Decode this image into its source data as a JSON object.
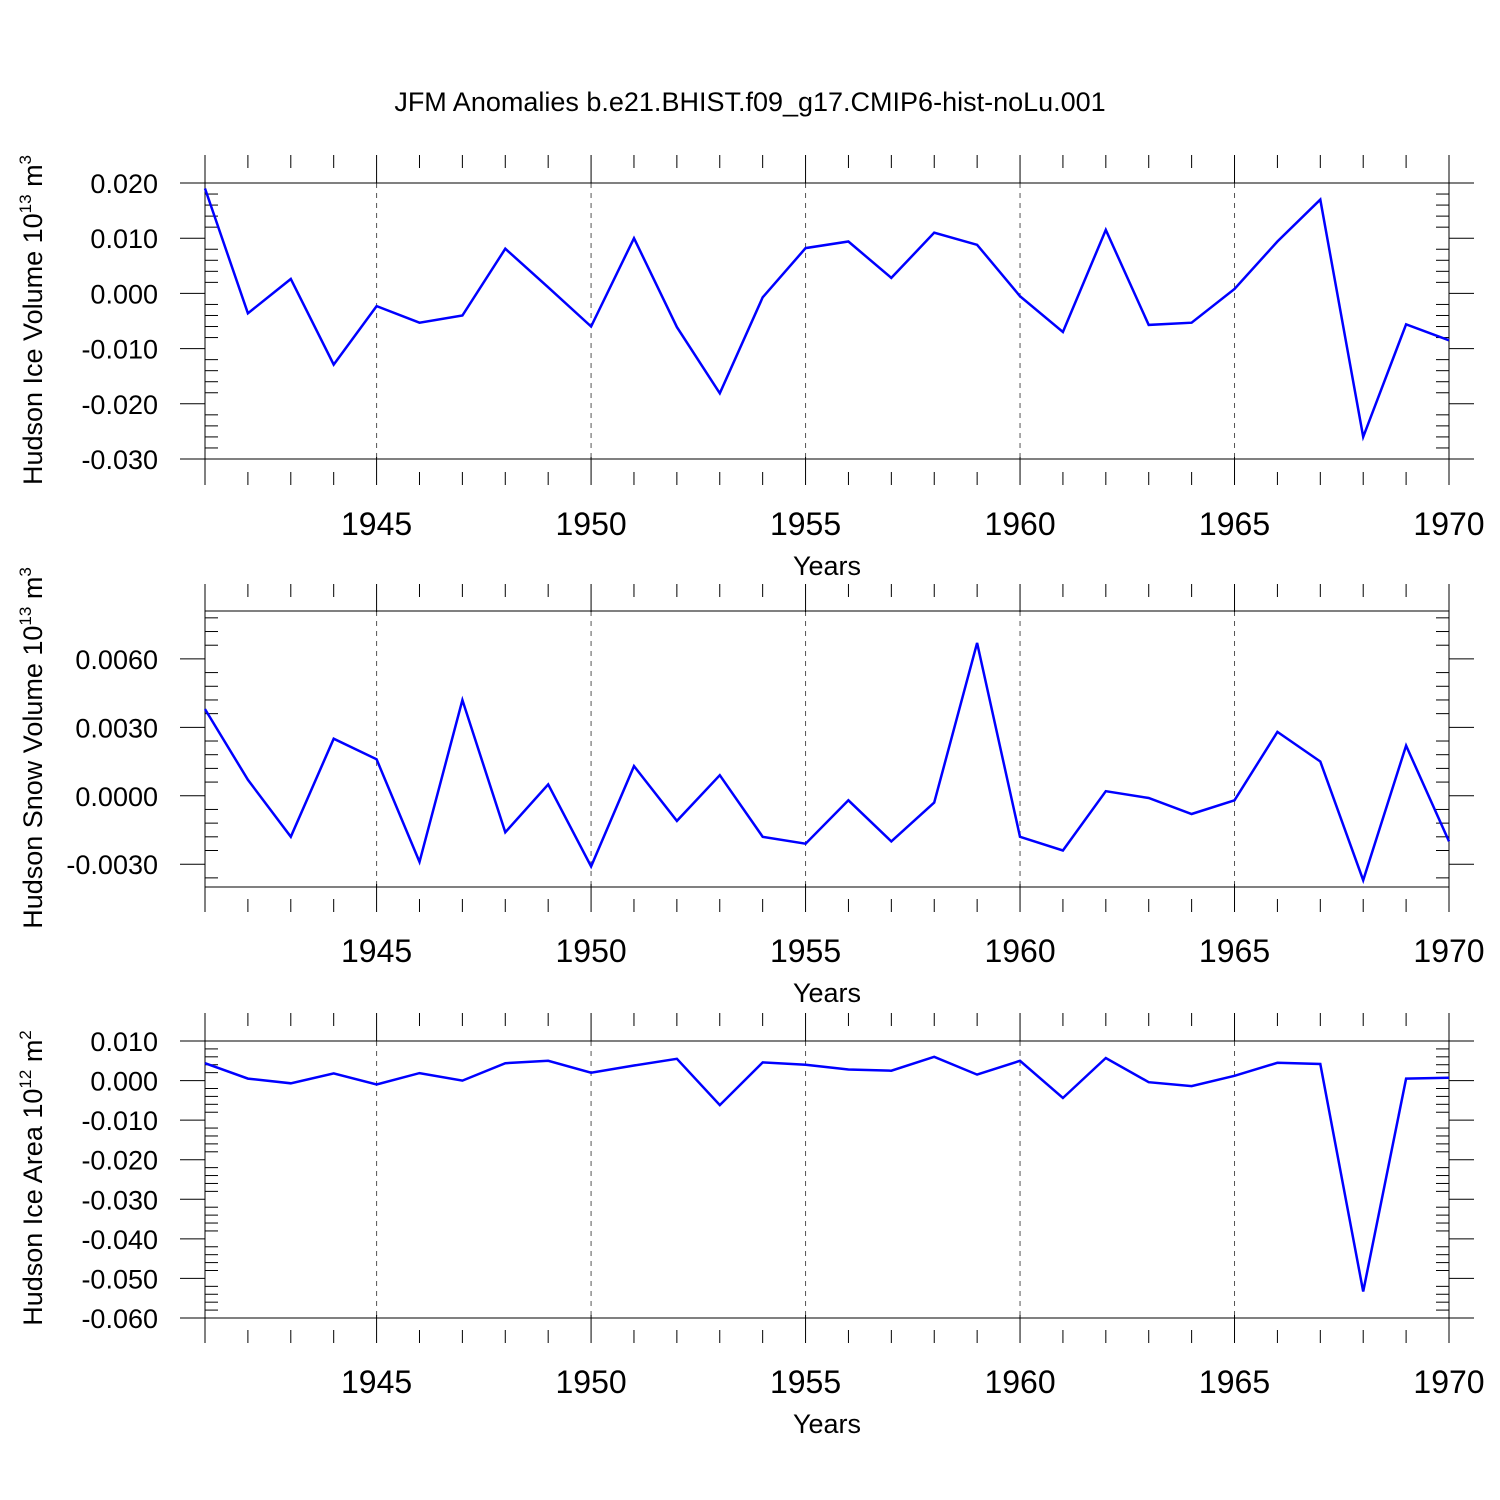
{
  "figure": {
    "title": "JFM Anomalies b.e21.BHIST.f09_g17.CMIP6-hist-noLu.001"
  },
  "chart_data": [
    {
      "type": "line",
      "xlabel": "Years",
      "ylabel": "Hudson Ice Volume 10",
      "ylabel_exp": "13",
      "ylabel_unit": " m",
      "ylabel_unit_exp": "3",
      "xlim": [
        1941,
        1970
      ],
      "ylim": [
        -0.03,
        0.02
      ],
      "xticks": [
        1945,
        1950,
        1955,
        1960,
        1965,
        1970
      ],
      "xtick_labels": [
        "1945",
        "1950",
        "1955",
        "1960",
        "1965",
        "1970"
      ],
      "yticks": [
        0.02,
        0.01,
        0.0,
        -0.01,
        -0.02,
        -0.03
      ],
      "ytick_labels": [
        "0.020",
        "0.010",
        "0.000",
        "-0.010",
        "-0.020",
        "-0.030"
      ],
      "grid": "dashed vertical at labelled x ticks",
      "line_color": "#0000ff",
      "x": [
        1941,
        1942,
        1943,
        1944,
        1945,
        1946,
        1947,
        1948,
        1949,
        1950,
        1951,
        1952,
        1953,
        1954,
        1955,
        1956,
        1957,
        1958,
        1959,
        1960,
        1961,
        1962,
        1963,
        1964,
        1965,
        1966,
        1967,
        1968,
        1969,
        1970
      ],
      "values": [
        0.019,
        -0.0036,
        0.0026,
        -0.0129,
        -0.0023,
        -0.0053,
        -0.004,
        0.0081,
        0.0011,
        -0.006,
        0.01,
        -0.0061,
        -0.0181,
        -0.0007,
        0.0082,
        0.0094,
        0.0028,
        0.011,
        0.0088,
        -0.0005,
        -0.007,
        0.0115,
        -0.0057,
        -0.0053,
        0.0008,
        0.0094,
        0.017,
        -0.026,
        -0.0056,
        -0.0085
      ]
    },
    {
      "type": "line",
      "xlabel": "Years",
      "ylabel": "Hudson Snow Volume 10",
      "ylabel_exp": "13",
      "ylabel_unit": " m",
      "ylabel_unit_exp": "3",
      "xlim": [
        1941,
        1970
      ],
      "ylim": [
        -0.004,
        0.0081
      ],
      "xticks": [
        1945,
        1950,
        1955,
        1960,
        1965,
        1970
      ],
      "xtick_labels": [
        "1945",
        "1950",
        "1955",
        "1960",
        "1965",
        "1970"
      ],
      "yticks": [
        0.006,
        0.003,
        0.0,
        -0.003
      ],
      "ytick_labels": [
        "0.0060",
        "0.0030",
        "0.0000",
        "-0.0030"
      ],
      "grid": "dashed vertical at labelled x ticks",
      "line_color": "#0000ff",
      "x": [
        1941,
        1942,
        1943,
        1944,
        1945,
        1946,
        1947,
        1948,
        1949,
        1950,
        1951,
        1952,
        1953,
        1954,
        1955,
        1956,
        1957,
        1958,
        1959,
        1960,
        1961,
        1962,
        1963,
        1964,
        1965,
        1966,
        1967,
        1968,
        1969,
        1970
      ],
      "values": [
        0.0038,
        0.0007,
        -0.0018,
        0.0025,
        0.0016,
        -0.0029,
        0.0042,
        -0.0016,
        0.0005,
        -0.0031,
        0.0013,
        -0.0011,
        0.0009,
        -0.0018,
        -0.0021,
        -0.0002,
        -0.002,
        -0.0003,
        0.0067,
        -0.0018,
        -0.0024,
        0.0002,
        -0.0001,
        -0.0008,
        -0.0002,
        0.0028,
        0.0015,
        -0.0037,
        0.0022,
        -0.002
      ]
    },
    {
      "type": "line",
      "xlabel": "Years",
      "ylabel": "Hudson Ice Area 10",
      "ylabel_exp": "12",
      "ylabel_unit": " m",
      "ylabel_unit_exp": "2",
      "xlim": [
        1941,
        1970
      ],
      "ylim": [
        -0.06,
        0.01
      ],
      "xticks": [
        1945,
        1950,
        1955,
        1960,
        1965,
        1970
      ],
      "xtick_labels": [
        "1945",
        "1950",
        "1955",
        "1960",
        "1965",
        "1970"
      ],
      "yticks": [
        0.01,
        0.0,
        -0.01,
        -0.02,
        -0.03,
        -0.04,
        -0.05,
        -0.06
      ],
      "ytick_labels": [
        "0.010",
        "0.000",
        "-0.010",
        "-0.020",
        "-0.030",
        "-0.040",
        "-0.050",
        "-0.060"
      ],
      "grid": "dashed vertical at labelled x ticks",
      "line_color": "#0000ff",
      "x": [
        1941,
        1942,
        1943,
        1944,
        1945,
        1946,
        1947,
        1948,
        1949,
        1950,
        1951,
        1952,
        1953,
        1954,
        1955,
        1956,
        1957,
        1958,
        1959,
        1960,
        1961,
        1962,
        1963,
        1964,
        1965,
        1966,
        1967,
        1968,
        1969,
        1970
      ],
      "values": [
        0.0044,
        0.0005,
        -0.0007,
        0.0018,
        -0.001,
        0.0019,
        0.0,
        0.0044,
        0.005,
        0.002,
        0.0038,
        0.0055,
        -0.0062,
        0.0046,
        0.004,
        0.0028,
        0.0025,
        0.006,
        0.0015,
        0.005,
        -0.0044,
        0.0057,
        -0.0004,
        -0.0014,
        0.0012,
        0.0045,
        0.0042,
        -0.0533,
        0.0005,
        0.0007
      ]
    }
  ]
}
